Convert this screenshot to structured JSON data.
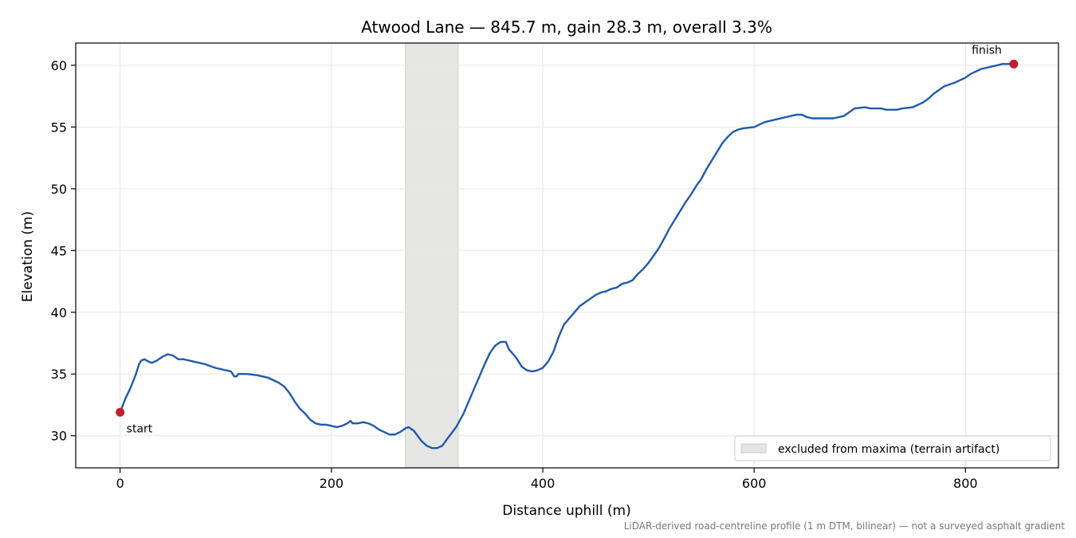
{
  "chart_data": {
    "type": "line",
    "title": "Atwood Lane — 845.7 m, gain 28.3 m, overall 3.3%",
    "xlabel": "Distance uphill (m)",
    "ylabel": "Elevation (m)",
    "xlim": [
      -42,
      888
    ],
    "ylim": [
      27.4,
      61.8
    ],
    "x_ticks": [
      0,
      200,
      400,
      600,
      800
    ],
    "y_ticks": [
      30,
      35,
      40,
      45,
      50,
      55,
      60
    ],
    "grid": true,
    "legend_placement": "lower-right",
    "series": [
      {
        "color": "#1f5aab",
        "points": [
          [
            0,
            31.9
          ],
          [
            5,
            33
          ],
          [
            10,
            33.9
          ],
          [
            15,
            35.0
          ],
          [
            18,
            35.8
          ],
          [
            20,
            36.1
          ],
          [
            23,
            36.2
          ],
          [
            27,
            36.0
          ],
          [
            30,
            35.9
          ],
          [
            35,
            36.1
          ],
          [
            40,
            36.4
          ],
          [
            45,
            36.6
          ],
          [
            50,
            36.5
          ],
          [
            55,
            36.2
          ],
          [
            60,
            36.2
          ],
          [
            70,
            36.0
          ],
          [
            80,
            35.8
          ],
          [
            90,
            35.5
          ],
          [
            100,
            35.3
          ],
          [
            105,
            35.2
          ],
          [
            108,
            34.8
          ],
          [
            110,
            34.8
          ],
          [
            112,
            35.0
          ],
          [
            120,
            35.0
          ],
          [
            130,
            34.9
          ],
          [
            140,
            34.7
          ],
          [
            150,
            34.3
          ],
          [
            155,
            34.0
          ],
          [
            160,
            33.5
          ],
          [
            165,
            32.8
          ],
          [
            170,
            32.2
          ],
          [
            175,
            31.8
          ],
          [
            180,
            31.3
          ],
          [
            185,
            31.0
          ],
          [
            190,
            30.9
          ],
          [
            195,
            30.9
          ],
          [
            200,
            30.8
          ],
          [
            205,
            30.7
          ],
          [
            210,
            30.8
          ],
          [
            215,
            31.0
          ],
          [
            218,
            31.2
          ],
          [
            220,
            31.0
          ],
          [
            225,
            31.0
          ],
          [
            230,
            31.1
          ],
          [
            235,
            31.0
          ],
          [
            240,
            30.8
          ],
          [
            245,
            30.5
          ],
          [
            250,
            30.3
          ],
          [
            255,
            30.1
          ],
          [
            260,
            30.1
          ],
          [
            265,
            30.3
          ],
          [
            270,
            30.6
          ],
          [
            273,
            30.7
          ],
          [
            278,
            30.4
          ],
          [
            285,
            29.6
          ],
          [
            290,
            29.2
          ],
          [
            295,
            29.0
          ],
          [
            300,
            29.0
          ],
          [
            305,
            29.2
          ],
          [
            310,
            29.8
          ],
          [
            318,
            30.7
          ],
          [
            325,
            31.8
          ],
          [
            330,
            32.8
          ],
          [
            335,
            33.8
          ],
          [
            340,
            34.8
          ],
          [
            345,
            35.8
          ],
          [
            350,
            36.7
          ],
          [
            355,
            37.3
          ],
          [
            360,
            37.6
          ],
          [
            365,
            37.6
          ],
          [
            368,
            37.0
          ],
          [
            375,
            36.3
          ],
          [
            380,
            35.6
          ],
          [
            385,
            35.3
          ],
          [
            390,
            35.2
          ],
          [
            395,
            35.3
          ],
          [
            400,
            35.5
          ],
          [
            405,
            36.0
          ],
          [
            410,
            36.8
          ],
          [
            415,
            38.0
          ],
          [
            420,
            39.0
          ],
          [
            425,
            39.5
          ],
          [
            430,
            40.0
          ],
          [
            435,
            40.5
          ],
          [
            440,
            40.8
          ],
          [
            445,
            41.1
          ],
          [
            450,
            41.4
          ],
          [
            455,
            41.6
          ],
          [
            460,
            41.7
          ],
          [
            465,
            41.9
          ],
          [
            470,
            42.0
          ],
          [
            475,
            42.3
          ],
          [
            480,
            42.4
          ],
          [
            485,
            42.6
          ],
          [
            490,
            43.1
          ],
          [
            495,
            43.5
          ],
          [
            500,
            44.0
          ],
          [
            505,
            44.6
          ],
          [
            510,
            45.2
          ],
          [
            515,
            46.0
          ],
          [
            520,
            46.8
          ],
          [
            525,
            47.5
          ],
          [
            530,
            48.2
          ],
          [
            535,
            48.9
          ],
          [
            540,
            49.5
          ],
          [
            545,
            50.2
          ],
          [
            550,
            50.8
          ],
          [
            555,
            51.6
          ],
          [
            560,
            52.3
          ],
          [
            565,
            53.0
          ],
          [
            570,
            53.7
          ],
          [
            575,
            54.2
          ],
          [
            580,
            54.6
          ],
          [
            585,
            54.8
          ],
          [
            590,
            54.9
          ],
          [
            600,
            55.0
          ],
          [
            605,
            55.2
          ],
          [
            610,
            55.4
          ],
          [
            620,
            55.6
          ],
          [
            630,
            55.8
          ],
          [
            640,
            56.0
          ],
          [
            645,
            56.0
          ],
          [
            650,
            55.8
          ],
          [
            655,
            55.7
          ],
          [
            665,
            55.7
          ],
          [
            675,
            55.7
          ],
          [
            685,
            55.9
          ],
          [
            690,
            56.2
          ],
          [
            695,
            56.5
          ],
          [
            705,
            56.6
          ],
          [
            710,
            56.5
          ],
          [
            720,
            56.5
          ],
          [
            725,
            56.4
          ],
          [
            735,
            56.4
          ],
          [
            740,
            56.5
          ],
          [
            750,
            56.6
          ],
          [
            755,
            56.8
          ],
          [
            760,
            57.0
          ],
          [
            765,
            57.3
          ],
          [
            770,
            57.7
          ],
          [
            775,
            58.0
          ],
          [
            780,
            58.3
          ],
          [
            790,
            58.6
          ],
          [
            800,
            59.0
          ],
          [
            805,
            59.3
          ],
          [
            810,
            59.5
          ],
          [
            815,
            59.7
          ],
          [
            825,
            59.9
          ],
          [
            830,
            60.0
          ],
          [
            835,
            60.1
          ],
          [
            845.7,
            60.1
          ]
        ]
      }
    ],
    "markers": [
      {
        "label": "start",
        "x": 0,
        "y": 31.9,
        "color": "#c21f2a"
      },
      {
        "label": "finish",
        "x": 845.7,
        "y": 60.1,
        "color": "#c21f2a"
      }
    ],
    "excluded_region": {
      "label": "excluded from maxima (terrain artifact)",
      "x_start": 270,
      "x_end": 320,
      "color": "#e5e5e4"
    },
    "footnote": "LiDAR-derived road-centreline profile (1 m DTM, bilinear) — not a surveyed asphalt gradient"
  }
}
